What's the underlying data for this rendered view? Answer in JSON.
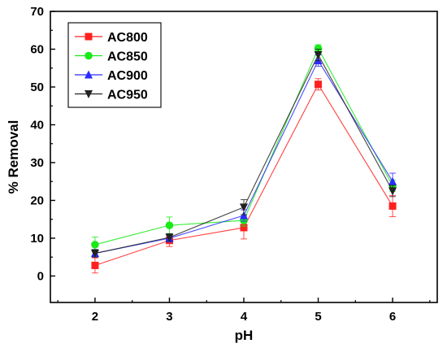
{
  "chart_data": {
    "type": "line",
    "title": "",
    "xlabel": "pH",
    "ylabel": "% Removal",
    "x": [
      2,
      3,
      4,
      5,
      6
    ],
    "xlim": [
      1.4,
      6.6
    ],
    "ylim": [
      -7,
      70
    ],
    "xticks": [
      2,
      3,
      4,
      5,
      6
    ],
    "yticks": [
      0,
      10,
      20,
      30,
      40,
      50,
      60,
      70
    ],
    "grid": false,
    "legend_position": "top-left",
    "series": [
      {
        "name": "AC800",
        "color": "#ff2020",
        "marker": "square",
        "values": [
          2.8,
          9.4,
          12.8,
          50.7,
          18.5
        ],
        "errors": [
          2.0,
          1.6,
          3.0,
          1.5,
          2.8
        ]
      },
      {
        "name": "AC850",
        "color": "#19ea19",
        "marker": "circle",
        "values": [
          8.3,
          13.4,
          14.7,
          60.2,
          23.9
        ],
        "errors": [
          2.0,
          2.2,
          1.5,
          1.0,
          1.5
        ]
      },
      {
        "name": "AC900",
        "color": "#2b2bff",
        "marker": "triangle-up",
        "values": [
          6.0,
          10.0,
          16.0,
          57.0,
          25.0
        ],
        "errors": [
          1.0,
          1.0,
          1.5,
          1.5,
          2.2
        ]
      },
      {
        "name": "AC950",
        "color": "#222222",
        "marker": "triangle-down",
        "values": [
          6.0,
          10.2,
          18.2,
          58.5,
          22.5
        ],
        "errors": [
          1.0,
          1.0,
          2.0,
          1.5,
          1.5
        ]
      }
    ]
  }
}
